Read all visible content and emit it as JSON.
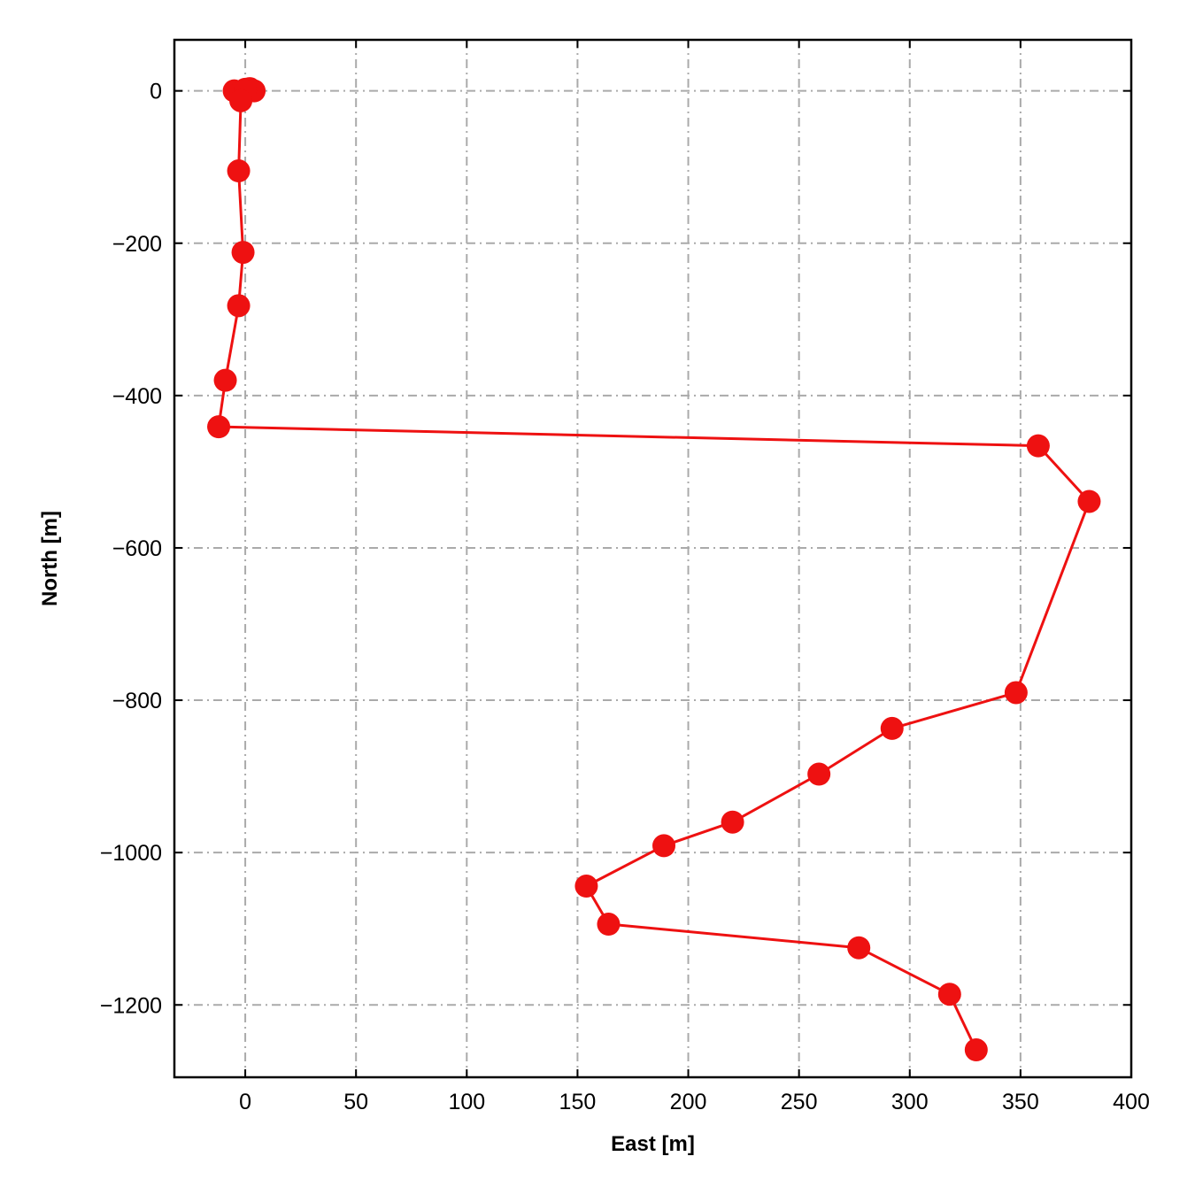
{
  "chart_data": {
    "type": "line",
    "title": "",
    "xlabel": "East [m]",
    "ylabel": "North [m]",
    "xlim": [
      -32,
      400
    ],
    "ylim": [
      -1295,
      67
    ],
    "xticks": [
      0,
      50,
      100,
      150,
      200,
      250,
      300,
      350,
      400
    ],
    "yticks": [
      0,
      -200,
      -400,
      -600,
      -800,
      -1000,
      -1200
    ],
    "xtick_labels": [
      "0",
      "50",
      "100",
      "150",
      "200",
      "250",
      "300",
      "350",
      "400"
    ],
    "ytick_labels": [
      "0",
      "−200",
      "−400",
      "−600",
      "−800",
      "−1000",
      "−1200"
    ],
    "grid": true,
    "grid_style": "dash-dot",
    "series": [
      {
        "color": "#ee1111",
        "marker": "circle",
        "x": [
          -5,
          -2,
          0,
          2,
          4,
          0,
          -2,
          -3,
          -1,
          -3,
          -9,
          -12,
          358,
          381,
          348,
          292,
          259,
          220,
          189,
          154,
          164,
          277,
          318,
          330
        ],
        "y": [
          0,
          -2,
          2,
          3,
          0,
          0,
          -13,
          -105,
          -212,
          -282,
          -380,
          -441,
          -466,
          -539,
          -790,
          -837,
          -897,
          -960,
          -991,
          -1044,
          -1094,
          -1125,
          -1186,
          -1259
        ]
      }
    ]
  }
}
